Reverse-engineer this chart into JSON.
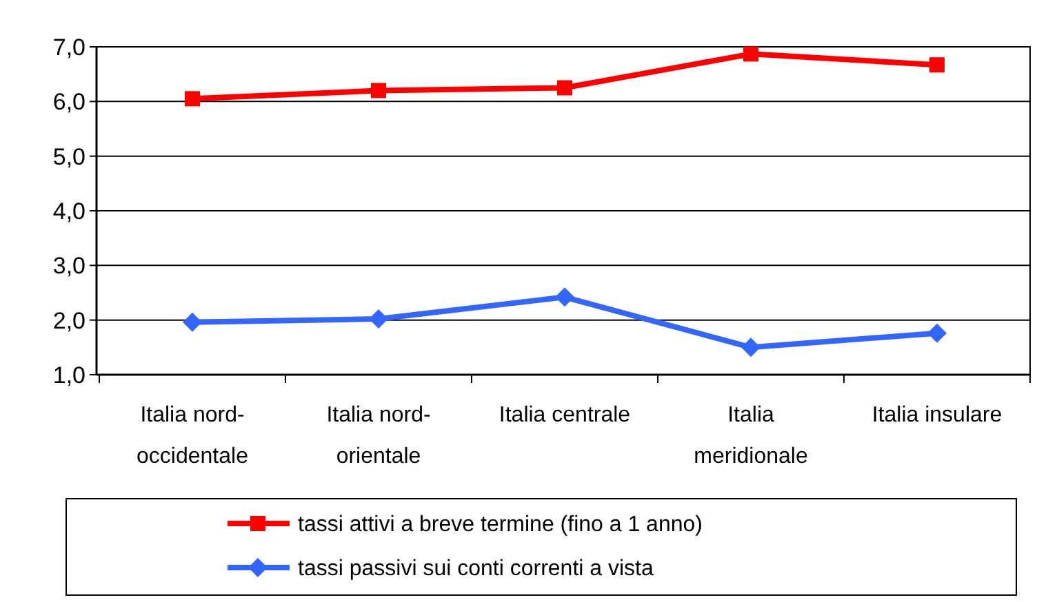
{
  "chart_data": {
    "type": "line",
    "categories": [
      "Italia nord-occidentale",
      "Italia nord-orientale",
      "Italia centrale",
      "Italia meridionale",
      "Italia insulare"
    ],
    "series": [
      {
        "name": "tassi attivi a breve termine (fino a 1 anno)",
        "color": "#ff0000",
        "marker": "square",
        "values": [
          6.05,
          6.2,
          6.25,
          6.87,
          6.67
        ]
      },
      {
        "name": "tassi passivi sui conti correnti a vista",
        "color": "#3366ff",
        "marker": "diamond",
        "values": [
          1.96,
          2.02,
          2.42,
          1.5,
          1.76
        ]
      }
    ],
    "ylim": [
      1,
      7
    ],
    "yticks": [
      {
        "value": 1,
        "label": "1,0"
      },
      {
        "value": 2,
        "label": "2,0"
      },
      {
        "value": 3,
        "label": "3,0"
      },
      {
        "value": 4,
        "label": "4,0"
      },
      {
        "value": 5,
        "label": "5,0"
      },
      {
        "value": 6,
        "label": "6,0"
      },
      {
        "value": 7,
        "label": "7,0"
      }
    ],
    "grid": "y",
    "legend": "bottom",
    "line_style": "solid"
  }
}
